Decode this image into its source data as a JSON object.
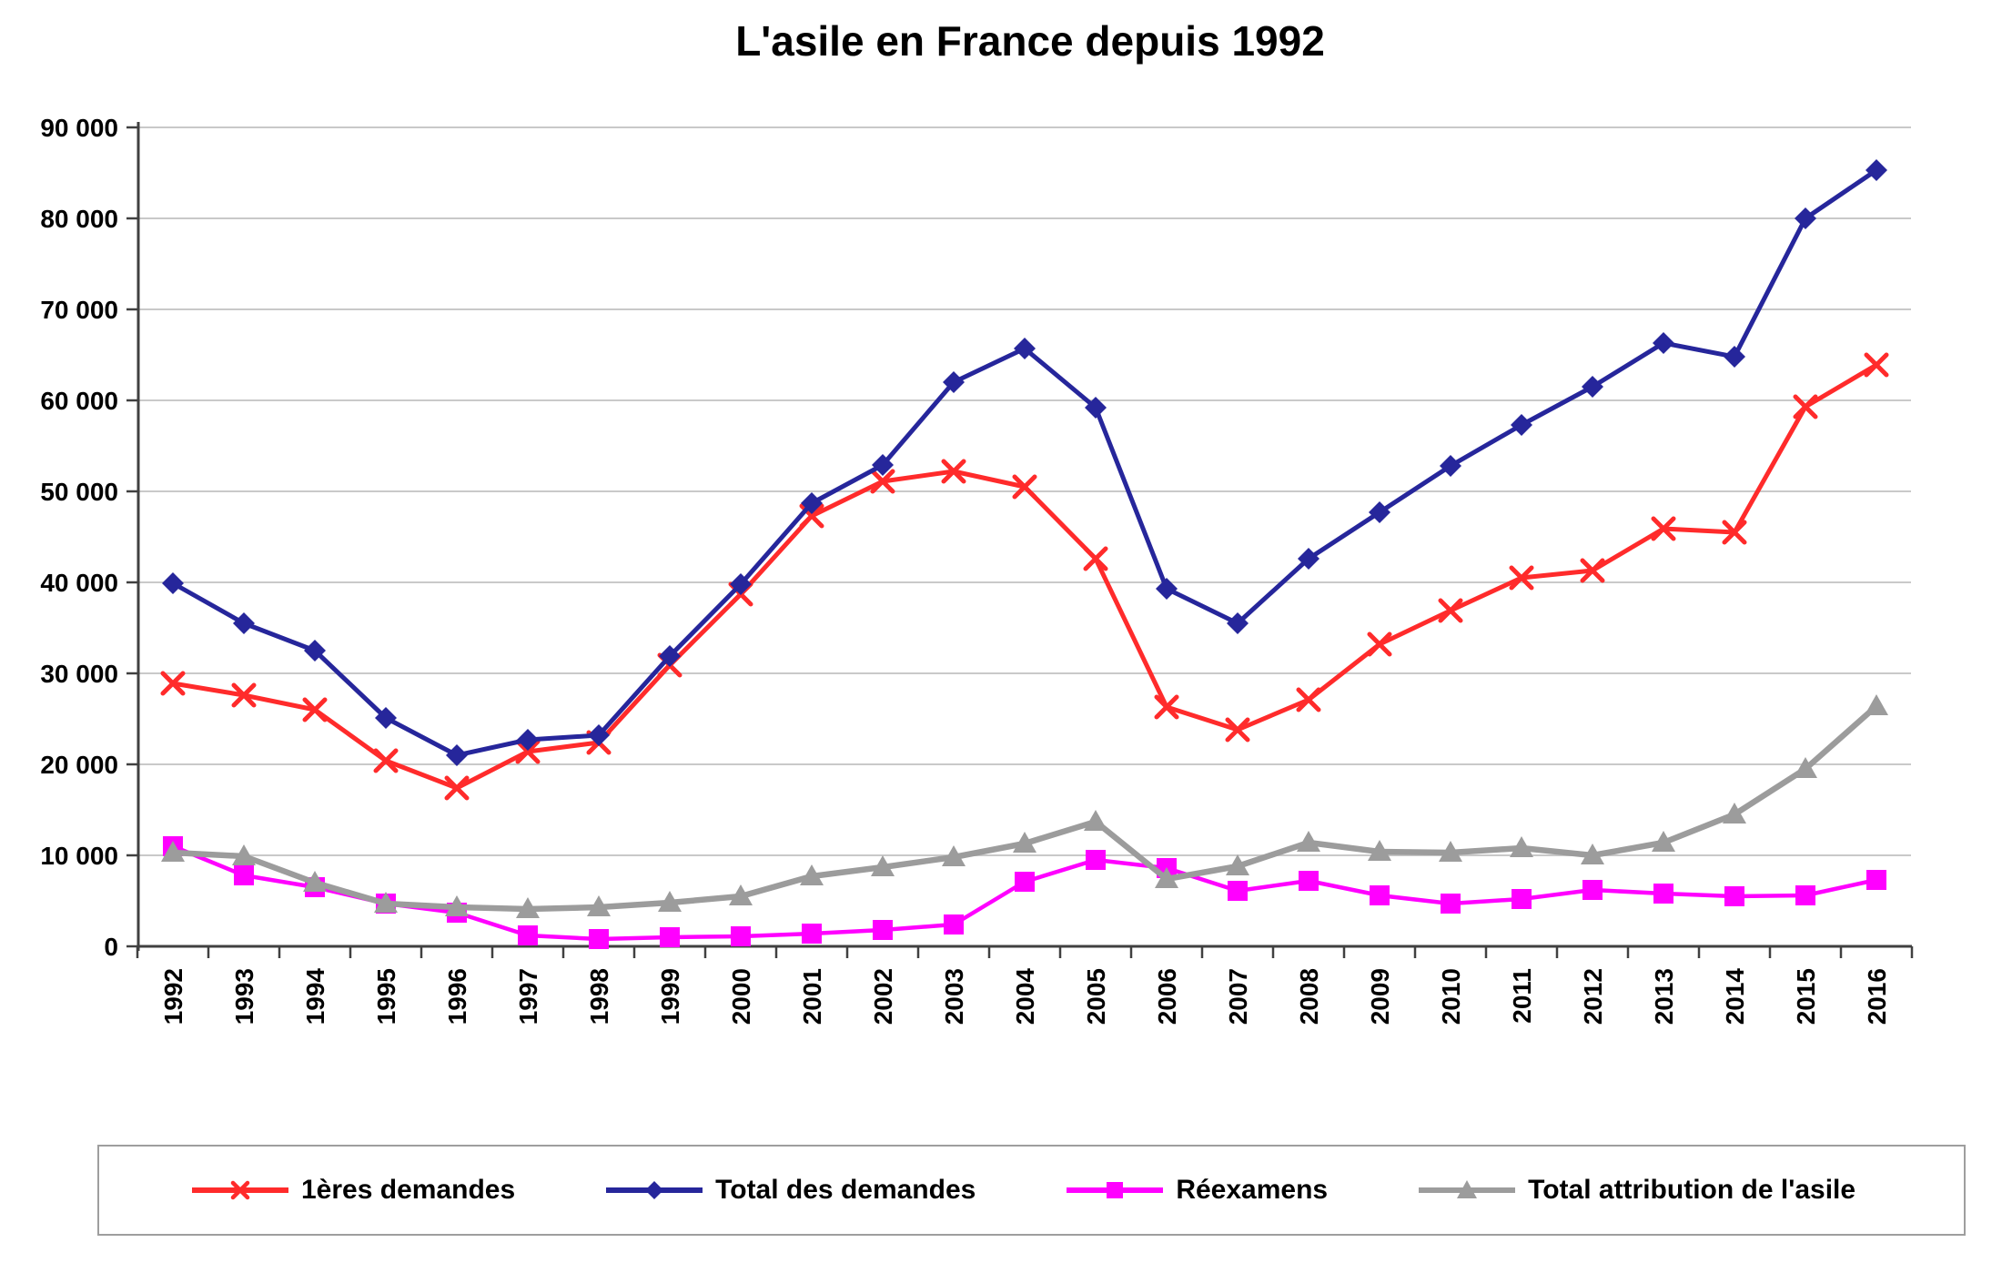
{
  "title": "L'asile en France depuis 1992",
  "chart_data": {
    "type": "line",
    "x": [
      1992,
      1993,
      1994,
      1995,
      1996,
      1997,
      1998,
      1999,
      2000,
      2001,
      2002,
      2003,
      2004,
      2005,
      2006,
      2007,
      2008,
      2009,
      2010,
      2011,
      2012,
      2013,
      2014,
      2015,
      2016
    ],
    "series": [
      {
        "name": "1ères demandes",
        "color": "#FF2B2B",
        "marker": "x",
        "values": [
          28900,
          27600,
          26000,
          20400,
          17400,
          21400,
          22400,
          30900,
          38700,
          47300,
          51100,
          52200,
          50500,
          42600,
          26300,
          23800,
          27100,
          33200,
          36900,
          40500,
          41300,
          45900,
          45500,
          59300,
          63900
        ]
      },
      {
        "name": "Total des demandes",
        "color": "#26269B",
        "marker": "diamond",
        "values": [
          39900,
          35500,
          32500,
          25100,
          21000,
          22700,
          23200,
          31900,
          39800,
          48700,
          52900,
          62000,
          65700,
          59200,
          39300,
          35500,
          42600,
          47700,
          52800,
          57300,
          61500,
          66300,
          64800,
          80000,
          85300
        ]
      },
      {
        "name": "Réexamens",
        "color": "#FF00FF",
        "marker": "square",
        "values": [
          11000,
          7800,
          6500,
          4700,
          3700,
          1200,
          800,
          1000,
          1100,
          1400,
          1800,
          2400,
          7100,
          9500,
          8600,
          6100,
          7200,
          5600,
          4700,
          5200,
          6200,
          5800,
          5500,
          5600,
          7300
        ]
      },
      {
        "name": "Total attribution de l'asile",
        "color": "#9C9C9C",
        "marker": "triangle",
        "values": [
          10300,
          9900,
          7000,
          4700,
          4300,
          4100,
          4300,
          4800,
          5500,
          7700,
          8700,
          9800,
          11300,
          13700,
          7400,
          8800,
          11400,
          10400,
          10300,
          10800,
          10000,
          11400,
          14500,
          19500,
          26400
        ]
      }
    ],
    "ylim": [
      0,
      90000
    ],
    "y_tick_step": 10000,
    "y_tick_labels": [
      "0",
      "10 000",
      "20 000",
      "30 000",
      "40 000",
      "50 000",
      "60 000",
      "70 000",
      "80 000",
      "90 000"
    ],
    "grid": true,
    "legend_position": "bottom",
    "xlabel": "",
    "ylabel": ""
  },
  "style_colors": {
    "gridline": "#C9C9C9",
    "axis": "#404040",
    "text": "#000000",
    "legend_border": "#9E9E9E"
  }
}
